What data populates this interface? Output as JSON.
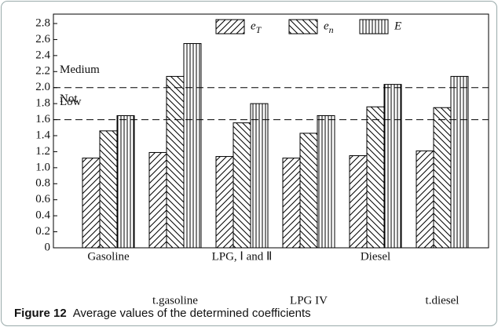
{
  "chart_data": {
    "type": "bar",
    "categories": [
      "Gasoline",
      "t.gasoline",
      "LPG, Ⅰ and Ⅱ",
      "LPG IV",
      "Diesel",
      "t.diesel"
    ],
    "series": [
      {
        "name": "eT",
        "color": "#000000",
        "pattern": "diagonal-right",
        "values": [
          1.12,
          1.19,
          1.14,
          1.12,
          1.15,
          1.21
        ]
      },
      {
        "name": "en",
        "color": "#000000",
        "pattern": "diagonal-left",
        "values": [
          1.46,
          2.14,
          1.56,
          1.43,
          1.76,
          1.75
        ]
      },
      {
        "name": "E",
        "color": "#000000",
        "pattern": "vertical",
        "values": [
          1.65,
          2.55,
          1.8,
          1.65,
          2.04,
          2.14
        ]
      }
    ],
    "ylim": [
      0,
      2.8
    ],
    "yticks": [
      0,
      0.2,
      0.4,
      0.6,
      0.8,
      {
        "value": 1,
        "label": "1.0"
      },
      1.2,
      1.4,
      1.6,
      1.8,
      {
        "value": 2,
        "label": "2.0"
      },
      2.2,
      2.4,
      2.6,
      2.8
    ],
    "thresholds": [
      {
        "value": 2.0,
        "label": "Medium"
      },
      {
        "value": 1.6,
        "label": "Low"
      }
    ],
    "base_label": "Not",
    "legend": "top",
    "caption": {
      "label": "Figure 12",
      "text": "Average values of the determined coefficients"
    }
  }
}
